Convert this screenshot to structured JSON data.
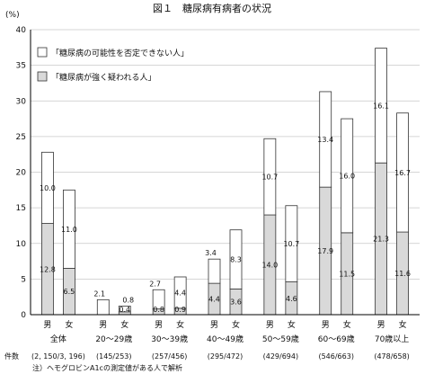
{
  "chart_data": {
    "type": "bar",
    "stacked": true,
    "title": "図１　糖尿病有病者の状況",
    "y_unit": "(%)",
    "ylim": [
      0,
      40
    ],
    "yticks": [
      0,
      5,
      10,
      15,
      20,
      25,
      30,
      35,
      40
    ],
    "grid": true,
    "legend_position": "top-left",
    "categories": [
      "全体",
      "20～29歳",
      "30～39歳",
      "40～49歳",
      "50～59歳",
      "60～69歳",
      "70歳以上"
    ],
    "counts": [
      "(2, 150/3, 196)",
      "(145/253)",
      "(257/456)",
      "(295/472)",
      "(429/694)",
      "(546/663)",
      "(478/658)"
    ],
    "counts_label": "件数",
    "sexes": [
      "男",
      "女"
    ],
    "series": [
      {
        "name": "「糖尿病が強く疑われる人」",
        "color": "#d9d9d9",
        "values_male": [
          12.8,
          0.0,
          0.8,
          4.4,
          14.0,
          17.9,
          21.3
        ],
        "values_female": [
          6.5,
          0.4,
          0.9,
          3.6,
          4.6,
          11.5,
          11.6
        ]
      },
      {
        "name": "「糖尿病の可能性を否定できない人」",
        "color": "#ffffff",
        "values_male": [
          10.0,
          2.1,
          2.7,
          3.4,
          10.7,
          13.4,
          16.1
        ],
        "values_female": [
          11.0,
          0.8,
          4.4,
          8.3,
          10.7,
          16.0,
          16.7
        ]
      }
    ],
    "labels_male": [
      [
        "12.8",
        "10.0"
      ],
      [
        "",
        "2.1"
      ],
      [
        "0.8",
        "2.7"
      ],
      [
        "4.4",
        "3.4"
      ],
      [
        "14.0",
        "10.7"
      ],
      [
        "17.9",
        "13.4"
      ],
      [
        "21.3",
        "16.1"
      ]
    ],
    "labels_female": [
      [
        "6.5",
        "11.0"
      ],
      [
        "0.4",
        "0.8"
      ],
      [
        "0.9",
        "4.4"
      ],
      [
        "3.6",
        "8.3"
      ],
      [
        "4.6",
        "10.7"
      ],
      [
        "11.5",
        "16.0"
      ],
      [
        "11.6",
        "16.7"
      ]
    ],
    "note": "注）ヘモグロビンA1cの測定値がある人で解析"
  }
}
